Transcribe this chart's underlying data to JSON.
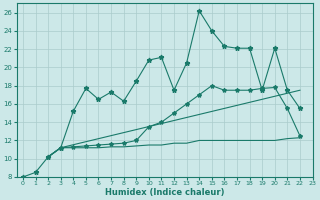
{
  "xlabel": "Humidex (Indice chaleur)",
  "xlim": [
    -0.5,
    23
  ],
  "ylim": [
    8,
    27
  ],
  "xticks": [
    0,
    1,
    2,
    3,
    4,
    5,
    6,
    7,
    8,
    9,
    10,
    11,
    12,
    13,
    14,
    15,
    16,
    17,
    18,
    19,
    20,
    21,
    22,
    23
  ],
  "yticks": [
    8,
    10,
    12,
    14,
    16,
    18,
    20,
    22,
    24,
    26
  ],
  "bg_color": "#cce8e8",
  "line_color": "#1a7a6a",
  "grid_color": "#aacccc",
  "line1_x": [
    0,
    1,
    2,
    3,
    4,
    5,
    6,
    7,
    8,
    9,
    10,
    11,
    12,
    13,
    14,
    15,
    16,
    17,
    18,
    19,
    20,
    21,
    22
  ],
  "line1_y": [
    8.0,
    8.5,
    10.2,
    11.2,
    15.2,
    17.7,
    16.5,
    17.3,
    16.3,
    18.5,
    20.8,
    21.1,
    17.5,
    20.5,
    26.2,
    24.0,
    22.3,
    22.1,
    22.1,
    17.5,
    22.1,
    17.5,
    15.5
  ],
  "line1_markers": true,
  "line2_x": [
    2,
    3,
    4,
    5,
    6,
    7,
    8,
    9,
    10,
    11,
    12,
    13,
    14,
    15,
    16,
    17,
    18,
    19,
    20,
    21,
    22
  ],
  "line2_y": [
    10.2,
    11.2,
    11.3,
    11.4,
    11.5,
    11.6,
    11.7,
    12.0,
    13.5,
    14.0,
    15.0,
    16.0,
    17.0,
    18.0,
    17.5,
    17.5,
    17.5,
    17.7,
    17.8,
    15.5,
    12.5
  ],
  "line2_markers": false,
  "line3_x": [
    2,
    3,
    22
  ],
  "line3_y": [
    10.2,
    11.2,
    17.5
  ],
  "line3_markers": false,
  "line4_x": [
    2,
    3,
    4,
    5,
    6,
    7,
    8,
    9,
    10,
    11,
    12,
    13,
    14,
    15,
    16,
    17,
    18,
    19,
    20,
    21,
    22
  ],
  "line4_y": [
    10.2,
    11.2,
    11.2,
    11.2,
    11.2,
    11.3,
    11.3,
    11.4,
    11.5,
    11.5,
    11.7,
    11.7,
    12.0,
    12.0,
    12.0,
    12.0,
    12.0,
    12.0,
    12.0,
    12.2,
    12.3
  ],
  "line4_markers": false
}
